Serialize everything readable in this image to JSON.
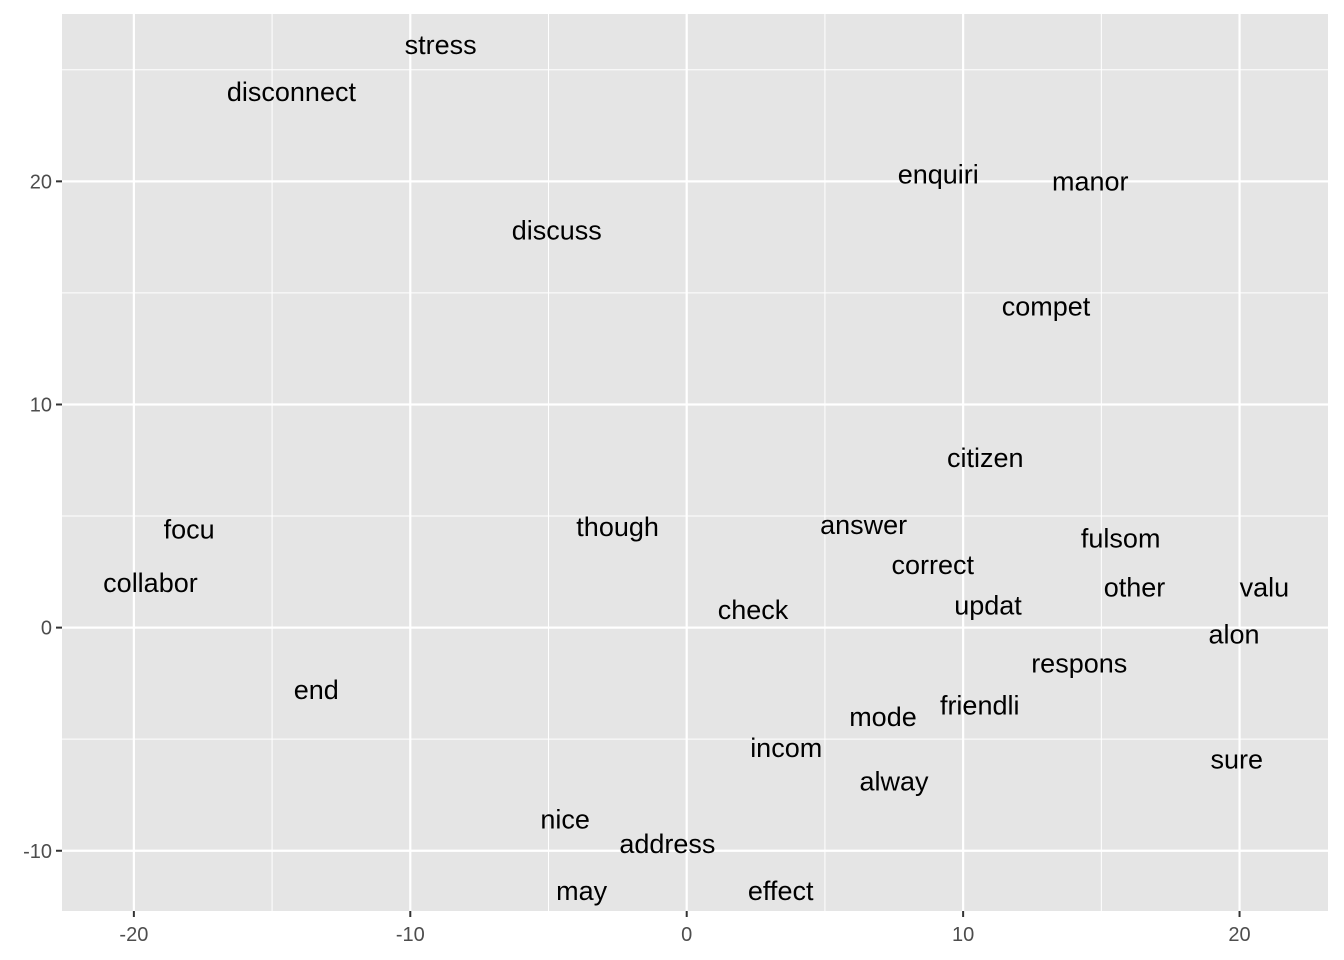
{
  "chart_data": {
    "type": "scatter",
    "mark": "text",
    "title": "",
    "xlabel": "",
    "ylabel": "",
    "xlim": [
      -22.6,
      23.2
    ],
    "ylim": [
      -12.7,
      27.5
    ],
    "x_ticks": [
      -20,
      -10,
      0,
      10,
      20
    ],
    "y_ticks": [
      -10,
      0,
      10,
      20
    ],
    "x_tick_labels": [
      "-20",
      "-10",
      "0",
      "10",
      "20"
    ],
    "y_tick_labels": [
      "-10",
      "0",
      "10",
      "20"
    ],
    "grid": true,
    "panel_background": "#e5e5e5",
    "grid_color": "#ffffff",
    "points": [
      {
        "label": "stress",
        "x": -8.9,
        "y": 26.1
      },
      {
        "label": "disconnect",
        "x": -14.3,
        "y": 24.0
      },
      {
        "label": "discuss",
        "x": -4.7,
        "y": 17.8
      },
      {
        "label": "enquiri",
        "x": 9.1,
        "y": 20.3
      },
      {
        "label": "manor",
        "x": 14.6,
        "y": 20.0
      },
      {
        "label": "compet",
        "x": 13.0,
        "y": 14.4
      },
      {
        "label": "citizen",
        "x": 10.8,
        "y": 7.6
      },
      {
        "label": "focu",
        "x": -18.0,
        "y": 4.4
      },
      {
        "label": "though",
        "x": -2.5,
        "y": 4.5
      },
      {
        "label": "answer",
        "x": 6.4,
        "y": 4.6
      },
      {
        "label": "fulsom",
        "x": 15.7,
        "y": 4.0
      },
      {
        "label": "collabor",
        "x": -19.4,
        "y": 2.0
      },
      {
        "label": "correct",
        "x": 8.9,
        "y": 2.8
      },
      {
        "label": "other",
        "x": 16.2,
        "y": 1.8
      },
      {
        "label": "valu",
        "x": 20.9,
        "y": 1.8
      },
      {
        "label": "check",
        "x": 2.4,
        "y": 0.8
      },
      {
        "label": "updat",
        "x": 10.9,
        "y": 1.0
      },
      {
        "label": "alon",
        "x": 19.8,
        "y": -0.3
      },
      {
        "label": "respons",
        "x": 14.2,
        "y": -1.6
      },
      {
        "label": "end",
        "x": -13.4,
        "y": -2.8
      },
      {
        "label": "friendli",
        "x": 10.6,
        "y": -3.5
      },
      {
        "label": "mode",
        "x": 7.1,
        "y": -4.0
      },
      {
        "label": "incom",
        "x": 3.6,
        "y": -5.4
      },
      {
        "label": "alway",
        "x": 7.5,
        "y": -6.9
      },
      {
        "label": "sure",
        "x": 19.9,
        "y": -5.9
      },
      {
        "label": "nice",
        "x": -4.4,
        "y": -8.6
      },
      {
        "label": "address",
        "x": -0.7,
        "y": -9.7
      },
      {
        "label": "may",
        "x": -3.8,
        "y": -11.8
      },
      {
        "label": "effect",
        "x": 3.4,
        "y": -11.8
      }
    ]
  }
}
